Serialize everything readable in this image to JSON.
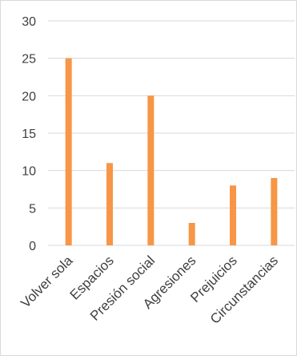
{
  "chart_data": {
    "type": "bar",
    "title": "",
    "xlabel": "",
    "ylabel": "",
    "categories": [
      "Volver sola",
      "Espacios",
      "Presión social",
      "Agresiones",
      "Prejuicios",
      "Circunstancias"
    ],
    "values": [
      25,
      11,
      20,
      3,
      8,
      9
    ],
    "ylim": [
      0,
      30
    ],
    "yticks": [
      0,
      5,
      10,
      15,
      20,
      25,
      30
    ],
    "grid": true,
    "legend": "none",
    "bar_color": "#f79646",
    "grid_color": "#d9d9d9",
    "text_color": "#404040"
  }
}
